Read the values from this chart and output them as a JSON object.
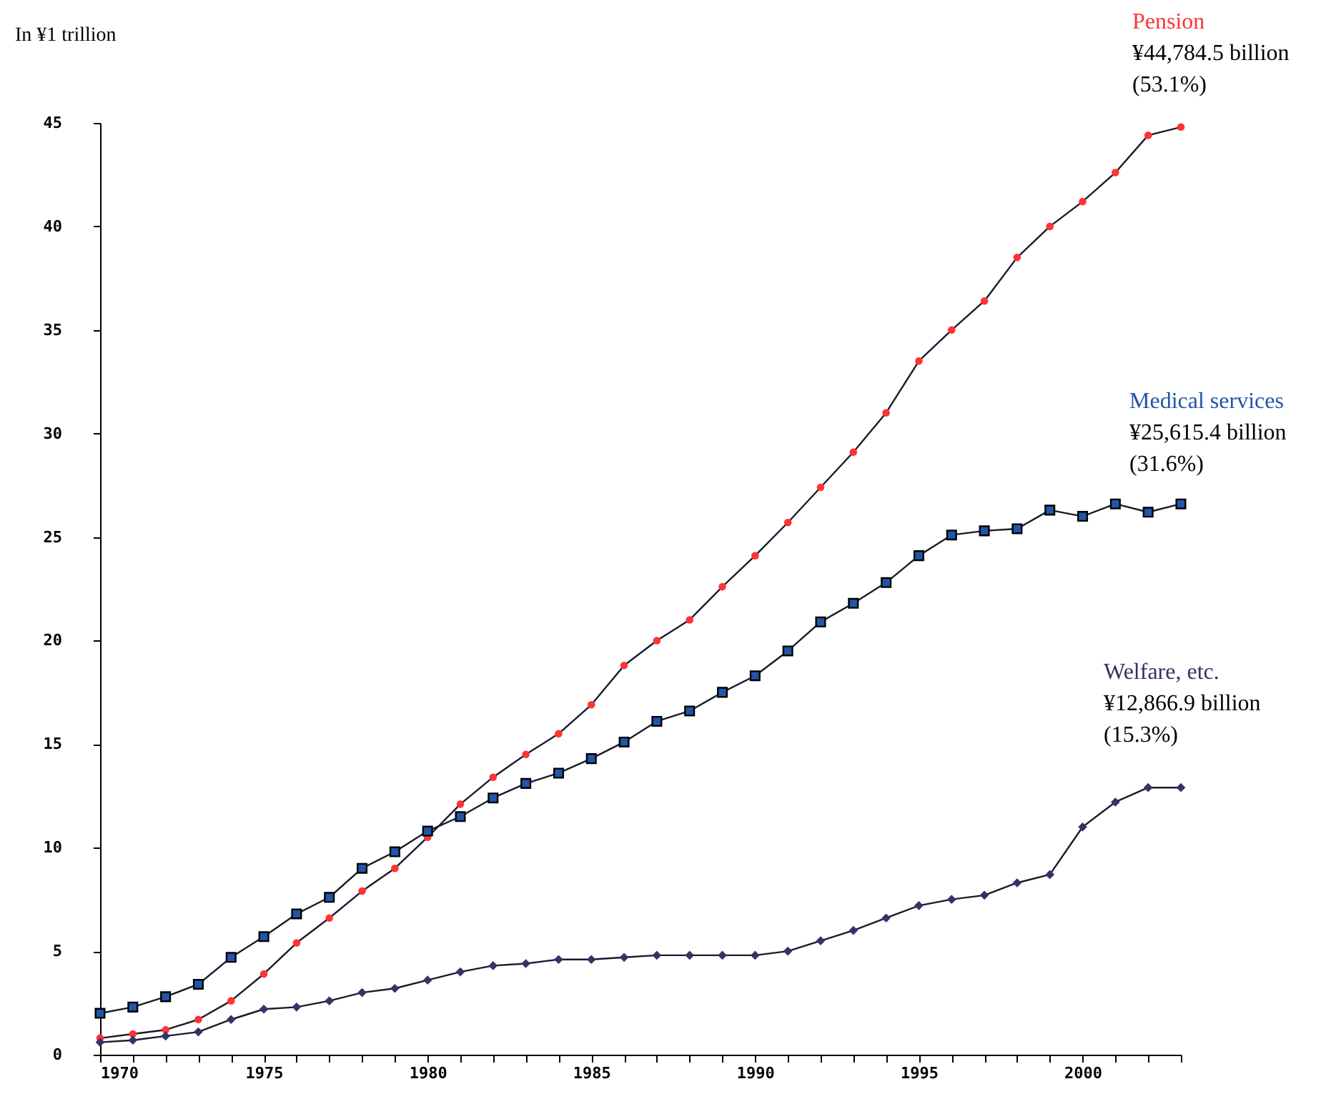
{
  "chart_data": {
    "type": "line",
    "ylabel": "In ¥1 trillion",
    "x": [
      1970,
      1971,
      1972,
      1973,
      1974,
      1975,
      1976,
      1977,
      1978,
      1979,
      1980,
      1981,
      1982,
      1983,
      1984,
      1985,
      1986,
      1987,
      1988,
      1989,
      1990,
      1991,
      1992,
      1993,
      1994,
      1995,
      1996,
      1997,
      1998,
      1999,
      2000,
      2001,
      2002,
      2003
    ],
    "series": [
      {
        "name": "Pension",
        "color": "#ff3333",
        "marker": "circle",
        "values": [
          0.8,
          1.0,
          1.2,
          1.7,
          2.6,
          3.9,
          5.4,
          6.6,
          7.9,
          9.0,
          10.5,
          12.1,
          13.4,
          14.5,
          15.5,
          16.9,
          18.8,
          20.0,
          21.0,
          22.6,
          24.1,
          25.7,
          27.4,
          29.1,
          31.0,
          33.5,
          35.0,
          36.4,
          38.5,
          40.0,
          41.2,
          42.6,
          44.4,
          44.8
        ]
      },
      {
        "name": "Medical services",
        "color": "#2255aa",
        "marker": "square",
        "values": [
          2.0,
          2.3,
          2.8,
          3.4,
          4.7,
          5.7,
          6.8,
          7.6,
          9.0,
          9.8,
          10.8,
          11.5,
          12.4,
          13.1,
          13.6,
          14.3,
          15.1,
          16.1,
          16.6,
          17.5,
          18.3,
          19.5,
          20.9,
          21.8,
          22.8,
          24.1,
          25.1,
          25.3,
          25.4,
          26.3,
          26.0,
          26.6,
          26.2,
          26.6
        ]
      },
      {
        "name": "Welfare, etc.",
        "color": "#333366",
        "marker": "diamond",
        "values": [
          0.6,
          0.7,
          0.9,
          1.1,
          1.7,
          2.2,
          2.3,
          2.6,
          3.0,
          3.2,
          3.6,
          4.0,
          4.3,
          4.4,
          4.6,
          4.6,
          4.7,
          4.8,
          4.8,
          4.8,
          4.8,
          5.0,
          5.5,
          6.0,
          6.6,
          7.2,
          7.5,
          7.7,
          8.3,
          8.7,
          11.0,
          12.2,
          12.9,
          12.9
        ]
      }
    ],
    "annotations": [
      "¥44,784.5 billion",
      "(53.1%)",
      "¥25,615.4 billion",
      "(31.6%)",
      "¥12,866.9 billion",
      "(15.3%)"
    ],
    "xlim": [
      1970,
      2003
    ],
    "xticks": [
      1970,
      {
        "value": 1971,
        "label": null
      },
      {
        "value": 1972,
        "label": null
      },
      {
        "value": 1973,
        "label": null
      },
      {
        "value": 1974,
        "label": null
      },
      1975,
      {
        "value": 1976,
        "label": null
      },
      {
        "value": 1977,
        "label": null
      },
      {
        "value": 1978,
        "label": null
      },
      {
        "value": 1979,
        "label": null
      },
      1980,
      {
        "value": 1981,
        "label": null
      },
      {
        "value": 1982,
        "label": null
      },
      {
        "value": 1983,
        "label": null
      },
      {
        "value": 1984,
        "label": null
      },
      1985,
      {
        "value": 1986,
        "label": null
      },
      {
        "value": 1987,
        "label": null
      },
      {
        "value": 1988,
        "label": null
      },
      {
        "value": 1989,
        "label": null
      },
      1990,
      {
        "value": 1991,
        "label": null
      },
      {
        "value": 1992,
        "label": null
      },
      {
        "value": 1993,
        "label": null
      },
      {
        "value": 1994,
        "label": null
      },
      1995,
      {
        "value": 1996,
        "label": null
      },
      {
        "value": 1997,
        "label": null
      },
      {
        "value": 1998,
        "label": null
      },
      {
        "value": 1999,
        "label": null
      },
      2000,
      {
        "value": 2001,
        "label": null
      },
      {
        "value": 2002,
        "label": null
      },
      {
        "value": 2003,
        "label": null
      }
    ],
    "ylim": [
      0,
      45
    ],
    "yticks": [
      0,
      5,
      10,
      15,
      20,
      25,
      30,
      35,
      40,
      45
    ],
    "grid": false,
    "line_style": "solid"
  }
}
